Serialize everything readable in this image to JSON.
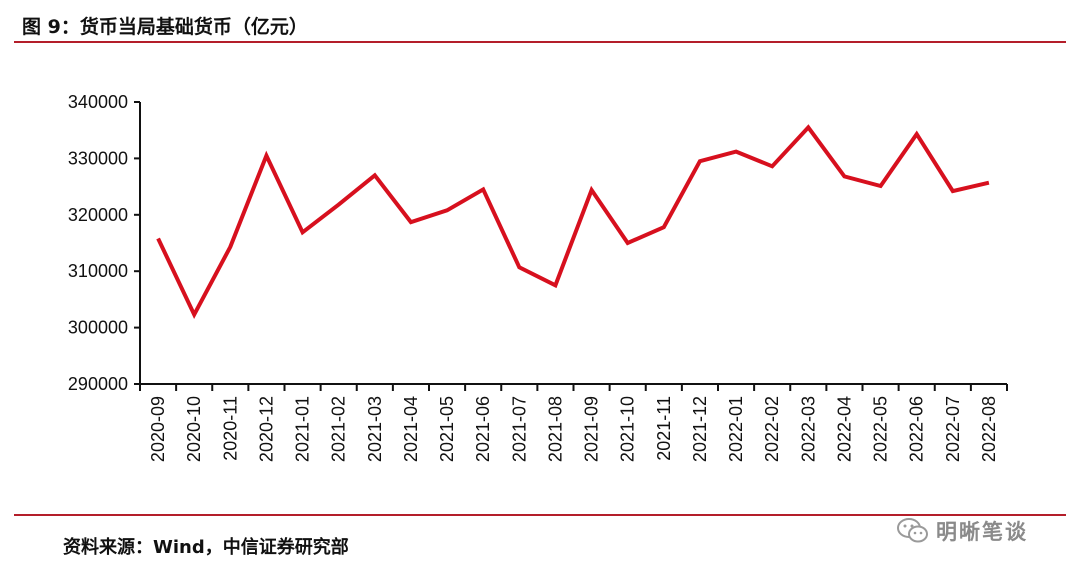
{
  "figure": {
    "title": "图 9：货币当局基础货币（亿元）",
    "source": "资料来源：Wind，中信证券研究部",
    "watermark": "明晰笔谈",
    "watermark_icon": "wechat-icon",
    "accent_color": "#b41e2a",
    "line_color": "#d7101e"
  },
  "chart_data": {
    "type": "line",
    "title": "",
    "xlabel": "",
    "ylabel": "",
    "ylim": [
      290000,
      340000
    ],
    "yticks": [
      "290000",
      "300000",
      "310000",
      "320000",
      "330000",
      "340000"
    ],
    "grid": false,
    "legend": "none",
    "categories": [
      "2020-09",
      "2020-10",
      "2020-11",
      "2020-12",
      "2021-01",
      "2021-02",
      "2021-03",
      "2021-04",
      "2021-05",
      "2021-06",
      "2021-07",
      "2021-08",
      "2021-09",
      "2021-10",
      "2021-11",
      "2021-12",
      "2022-01",
      "2022-02",
      "2022-03",
      "2022-04",
      "2022-05",
      "2022-06",
      "2022-07",
      "2022-08"
    ],
    "series": [
      {
        "values": [
          315800,
          302300,
          314300,
          330500,
          316900,
          321800,
          327000,
          318700,
          320800,
          324500,
          310700,
          307500,
          324400,
          315000,
          317800,
          329500,
          331200,
          328600,
          335500,
          326800,
          325100,
          334300,
          324200,
          325700
        ]
      }
    ]
  }
}
